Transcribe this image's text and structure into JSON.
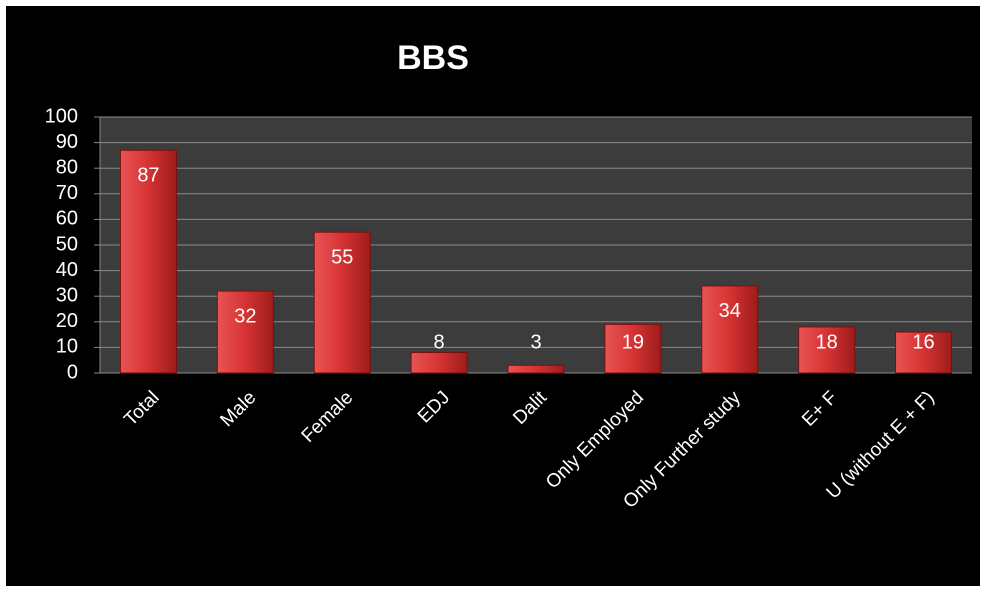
{
  "chart_data": {
    "type": "bar",
    "title": "BBS",
    "categories": [
      "Total",
      "Male",
      "Female",
      "EDJ",
      "Dalit",
      "Only Employed",
      "Only Further study",
      "E+ F",
      "U (without E + F)"
    ],
    "values": [
      87,
      32,
      55,
      8,
      3,
      19,
      34,
      18,
      16
    ],
    "color": "#c62828",
    "ylim": [
      0,
      100
    ],
    "yticks": [
      0,
      10,
      20,
      30,
      40,
      50,
      60,
      70,
      80,
      90,
      100
    ],
    "grid": true
  }
}
